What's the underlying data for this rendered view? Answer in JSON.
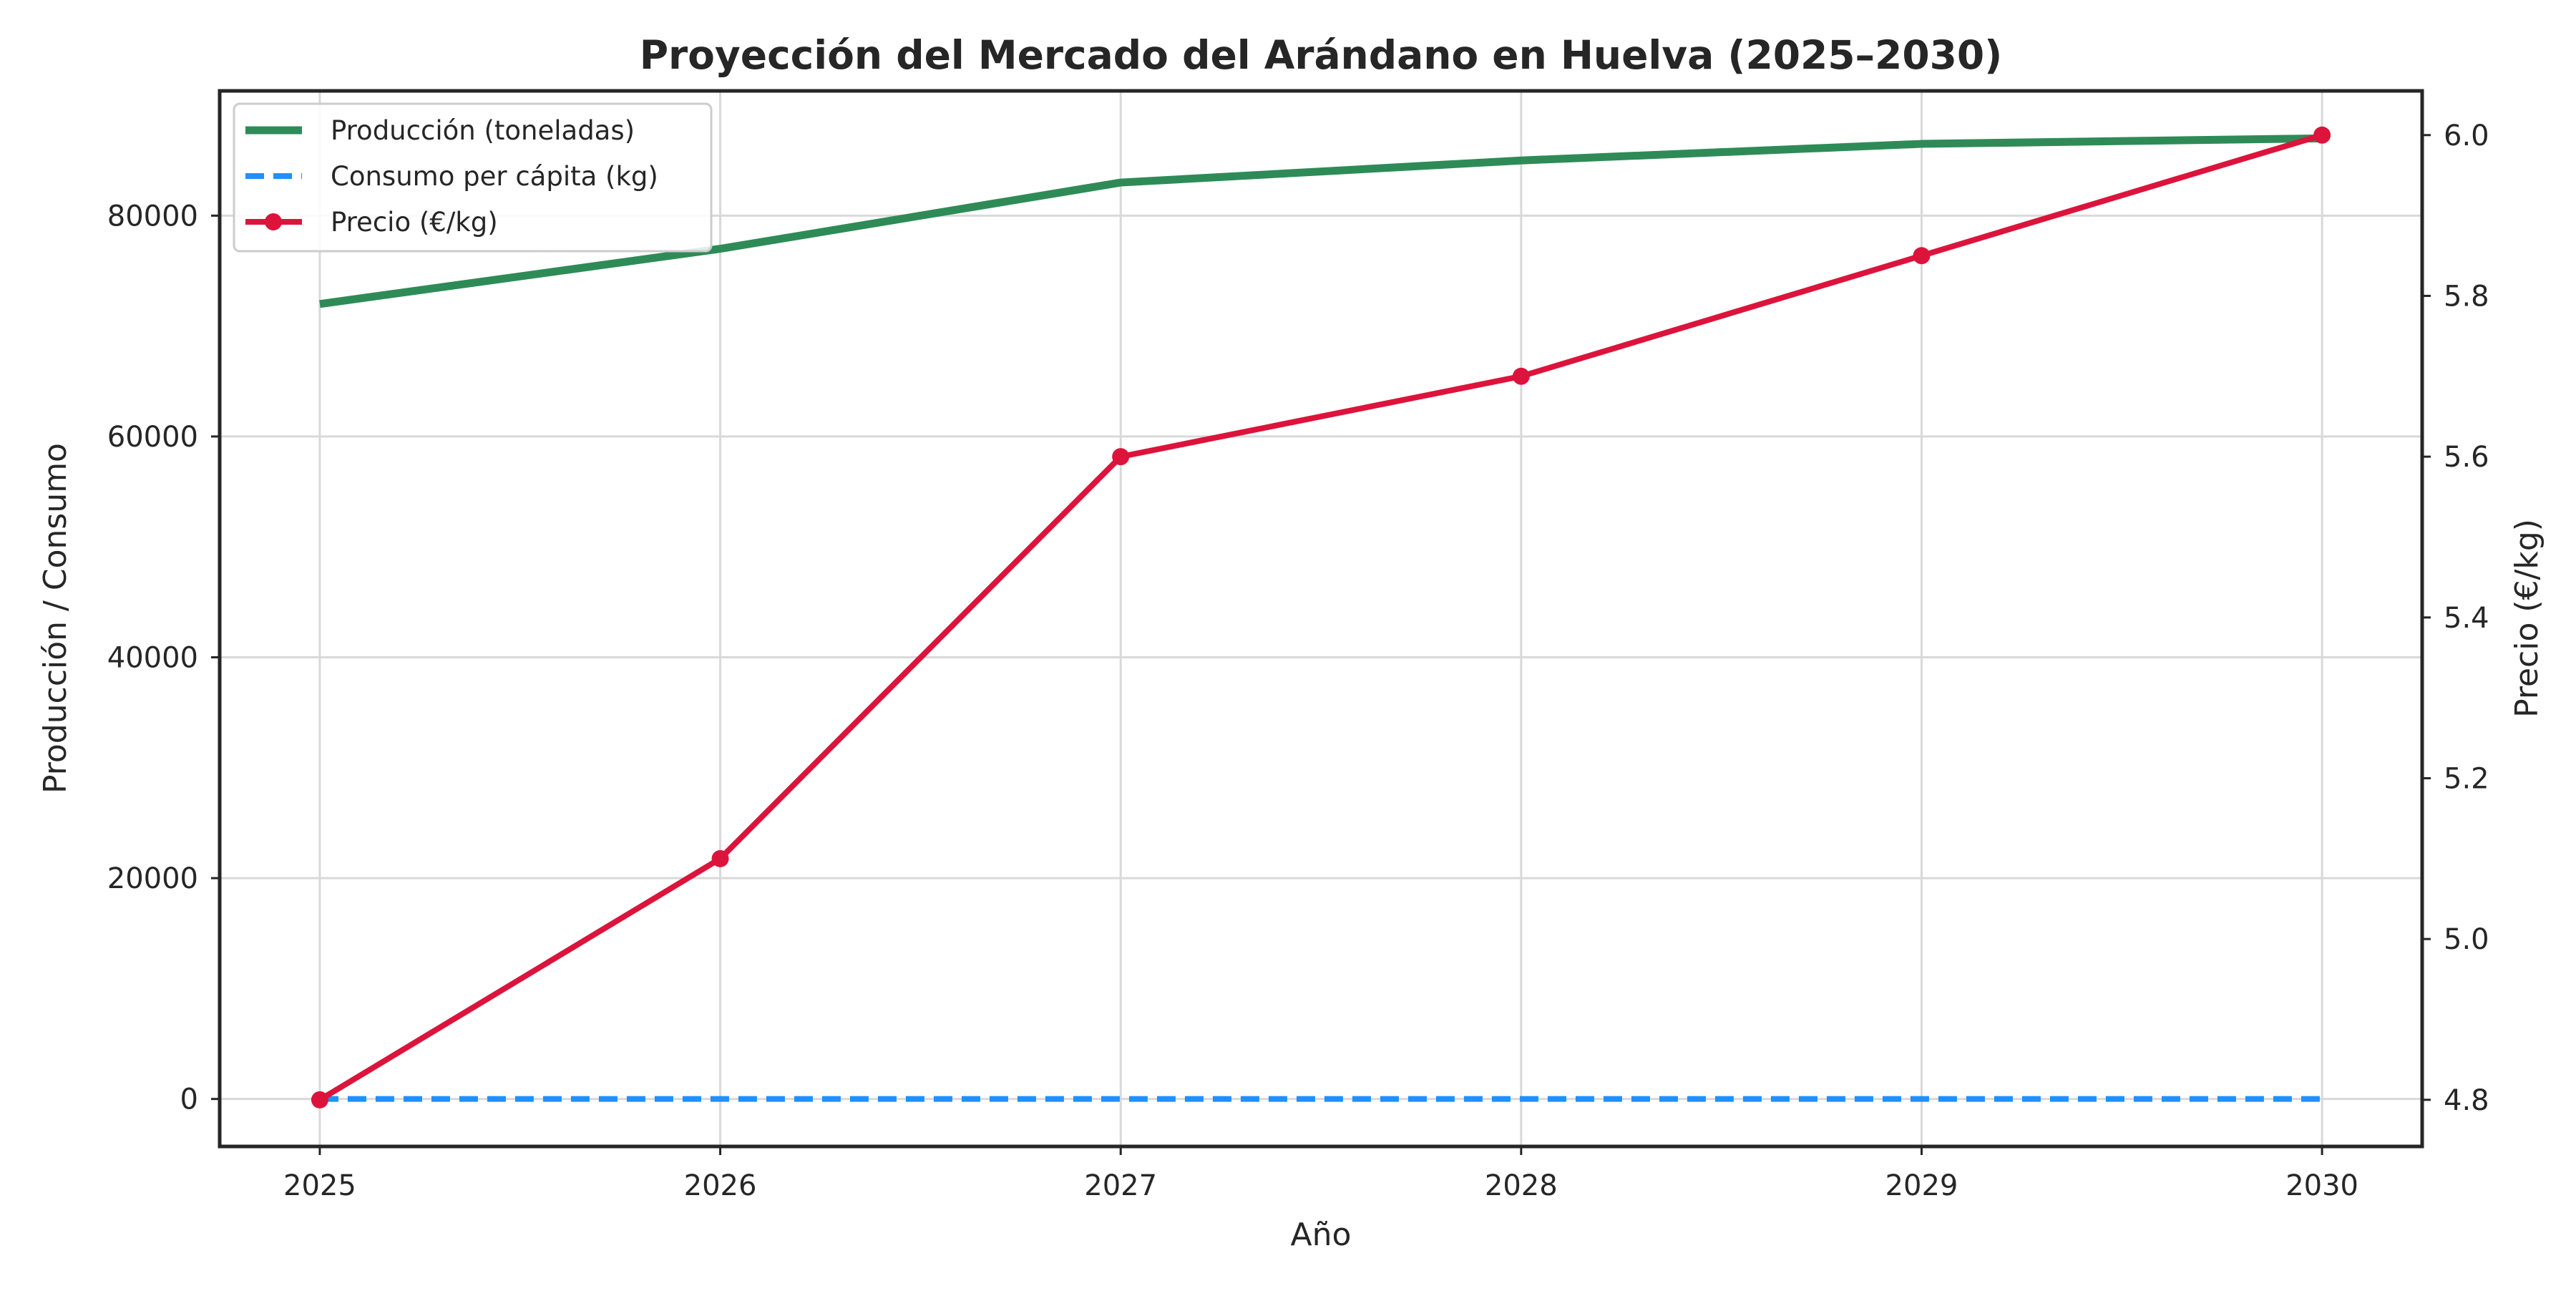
{
  "chart_data": {
    "type": "line",
    "title": "Proyección del Mercado del Arándano en Huelva (2025–2030)",
    "xlabel": "Año",
    "ylabel": "Producción / Consumo",
    "ylabel_right": "Precio (€/kg)",
    "x": [
      2025,
      2026,
      2027,
      2028,
      2029,
      2030
    ],
    "x_ticks": [
      "2025",
      "2026",
      "2027",
      "2028",
      "2029",
      "2030"
    ],
    "xlim": [
      2024.75,
      2030.25
    ],
    "ylim": [
      -4300,
      91300
    ],
    "ylim_right": [
      4.742,
      6.055
    ],
    "y_ticks": [
      "0",
      "20000",
      "40000",
      "60000",
      "80000"
    ],
    "y_ticks_values": [
      0,
      20000,
      40000,
      60000,
      80000
    ],
    "y_ticks_right": [
      "4.8",
      "5.0",
      "5.2",
      "5.4",
      "5.6",
      "5.8",
      "6.0"
    ],
    "y_ticks_right_values": [
      4.8,
      5.0,
      5.2,
      5.4,
      5.6,
      5.8,
      6.0
    ],
    "grid": true,
    "legend_position": "top-left",
    "series": [
      {
        "name": "Producción (toneladas)",
        "axis": "left",
        "style": "solid",
        "color": "#2e8b57",
        "values": [
          72000,
          77000,
          83000,
          85000,
          86500,
          87000
        ]
      },
      {
        "name": "Consumo per cápita (kg)",
        "axis": "left",
        "style": "dashed",
        "color": "#1e90ff",
        "values": [
          1.4,
          1.5,
          1.6,
          1.7,
          1.8,
          1.9
        ]
      },
      {
        "name": "Precio (€/kg)",
        "axis": "right",
        "style": "solid-markers",
        "color": "#dc143c",
        "values": [
          4.8,
          5.1,
          5.6,
          5.7,
          5.85,
          6.0
        ]
      }
    ]
  }
}
